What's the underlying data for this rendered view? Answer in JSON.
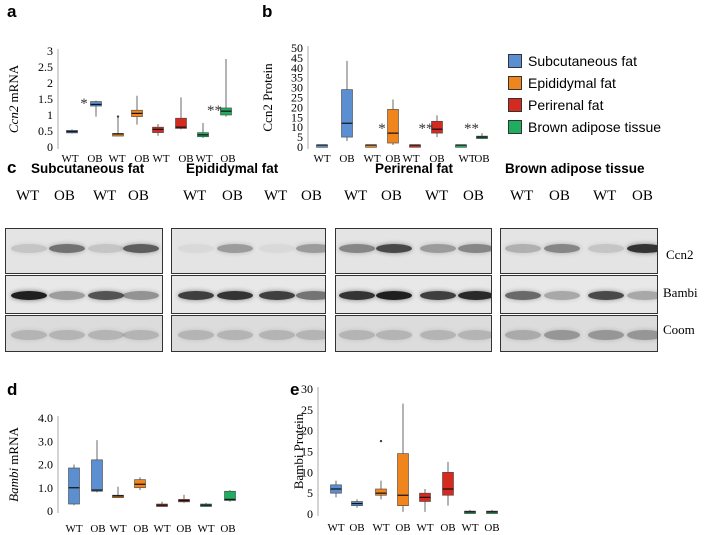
{
  "panels": {
    "a": "a",
    "b": "b",
    "c": "c",
    "d": "d",
    "e": "e"
  },
  "legend": [
    {
      "name": "Subcutaneous fat",
      "color": "#5b8fd1"
    },
    {
      "name": "Epididymal fat",
      "color": "#f0841d"
    },
    {
      "name": "Perirenal fat",
      "color": "#d52a20"
    },
    {
      "name": "Brown adipose tissue",
      "color": "#1fae5f"
    }
  ],
  "blots": {
    "titles": [
      "Subcutaneous fat",
      "Epididymal fat",
      "Perirenal fat",
      "Brown adipose tissue"
    ],
    "lanes": [
      "WT",
      "OB",
      "WT",
      "OB"
    ],
    "rows": [
      "Ccn2",
      "Bambi",
      "Coom"
    ]
  },
  "chart_data": [
    {
      "id": "a",
      "type": "box",
      "ylabel_gene": "Ccn2",
      "ylabel_suffix": " mRNA",
      "ylim": [
        0,
        3.0
      ],
      "yticks": [
        0,
        0.5,
        1.0,
        1.5,
        2.0,
        2.5,
        3.0
      ],
      "yticklabels": [
        "0",
        "0.5",
        "1",
        "1.5",
        "2",
        "2.5",
        "3"
      ],
      "categories": [
        "WT",
        "OB",
        "WT",
        "OB",
        "WT",
        "OB",
        "WT",
        "OB"
      ],
      "colors": [
        "#5b8fd1",
        "#5b8fd1",
        "#f0841d",
        "#f0841d",
        "#d52a20",
        "#d52a20",
        "#1fae5f",
        "#1fae5f"
      ],
      "boxes": [
        {
          "min": 0.42,
          "q1": 0.44,
          "median": 0.48,
          "q3": 0.52,
          "max": 0.55
        },
        {
          "min": 0.95,
          "q1": 1.28,
          "median": 1.33,
          "q3": 1.42,
          "max": 1.45
        },
        {
          "min": 0.38,
          "q1": 0.4,
          "median": 0.41,
          "q3": 0.42,
          "max": 0.95,
          "outliers": [
            0.95
          ]
        },
        {
          "min": 0.7,
          "q1": 0.95,
          "median": 1.05,
          "q3": 1.15,
          "max": 1.6
        },
        {
          "min": 0.35,
          "q1": 0.45,
          "median": 0.55,
          "q3": 0.62,
          "max": 0.72
        },
        {
          "min": 0.55,
          "q1": 0.58,
          "median": 0.62,
          "q3": 0.9,
          "max": 1.55
        },
        {
          "min": 0.28,
          "q1": 0.32,
          "median": 0.38,
          "q3": 0.45,
          "max": 0.75
        },
        {
          "min": 0.95,
          "q1": 1.0,
          "median": 1.12,
          "q3": 1.22,
          "max": 2.75
        }
      ],
      "annotations": [
        {
          "after": 0,
          "text": "*"
        },
        {
          "after": 6,
          "text": "**"
        }
      ]
    },
    {
      "id": "b",
      "type": "box",
      "ylabel": "Ccn2 Protein",
      "ylim": [
        0,
        50
      ],
      "yticks": [
        0,
        5,
        10,
        15,
        20,
        25,
        30,
        35,
        40,
        45,
        50
      ],
      "yticklabels": [
        "0",
        "5",
        "10",
        "15",
        "20",
        "25",
        "30",
        "35",
        "40",
        "45",
        "50"
      ],
      "categories": [
        "WT",
        "OB",
        "WT",
        "OB",
        "WT",
        "OB",
        "WT",
        "OB"
      ],
      "colors": [
        "#5b8fd1",
        "#5b8fd1",
        "#f0841d",
        "#f0841d",
        "#d52a20",
        "#d52a20",
        "#1fae5f",
        "#1fae5f"
      ],
      "boxes": [
        {
          "min": 0.8,
          "q1": 0.9,
          "median": 1.0,
          "q3": 1.1,
          "max": 1.2
        },
        {
          "min": 3.0,
          "q1": 5.0,
          "median": 12.0,
          "q3": 29.0,
          "max": 43.5
        },
        {
          "min": 0.8,
          "q1": 0.9,
          "median": 1.0,
          "q3": 1.1,
          "max": 1.2
        },
        {
          "min": 1.0,
          "q1": 2.0,
          "median": 7.0,
          "q3": 19.0,
          "max": 24.0
        },
        {
          "min": 0.8,
          "q1": 0.9,
          "median": 1.0,
          "q3": 1.1,
          "max": 1.2
        },
        {
          "min": 5.0,
          "q1": 7.0,
          "median": 9.0,
          "q3": 13.0,
          "max": 16.0
        },
        {
          "min": 0.8,
          "q1": 0.9,
          "median": 1.0,
          "q3": 1.1,
          "max": 1.2
        },
        {
          "min": 4.0,
          "q1": 4.5,
          "median": 5.0,
          "q3": 5.5,
          "max": 7.0
        }
      ],
      "annotations": [
        {
          "after": 2,
          "text": "*"
        },
        {
          "after": 4,
          "text": "**"
        },
        {
          "after": 6,
          "text": "**"
        }
      ]
    },
    {
      "id": "d",
      "type": "box",
      "ylabel_gene": "Bambi",
      "ylabel_suffix": " mRNA",
      "ylim": [
        0,
        4.0
      ],
      "yticks": [
        0,
        1.0,
        2.0,
        3.0,
        4.0
      ],
      "yticklabels": [
        "0",
        "1.0",
        "2.0",
        "3.0",
        "4.0"
      ],
      "categories": [
        "WT",
        "OB",
        "WT",
        "OB",
        "WT",
        "OB",
        "WT",
        "OB"
      ],
      "colors": [
        "#5b8fd1",
        "#5b8fd1",
        "#f0841d",
        "#f0841d",
        "#d52a20",
        "#d52a20",
        "#1fae5f",
        "#1fae5f"
      ],
      "boxes": [
        {
          "min": 0.25,
          "q1": 0.3,
          "median": 1.0,
          "q3": 1.85,
          "max": 2.0
        },
        {
          "min": 0.8,
          "q1": 0.85,
          "median": 0.9,
          "q3": 2.2,
          "max": 3.05
        },
        {
          "min": 0.62,
          "q1": 0.64,
          "median": 0.65,
          "q3": 0.68,
          "max": 1.05
        },
        {
          "min": 0.9,
          "q1": 1.0,
          "median": 1.15,
          "q3": 1.35,
          "max": 1.45
        },
        {
          "min": 0.2,
          "q1": 0.22,
          "median": 0.25,
          "q3": 0.3,
          "max": 0.4
        },
        {
          "min": 0.35,
          "q1": 0.4,
          "median": 0.45,
          "q3": 0.5,
          "max": 0.7
        },
        {
          "min": 0.2,
          "q1": 0.22,
          "median": 0.25,
          "q3": 0.3,
          "max": 0.35
        },
        {
          "min": 0.4,
          "q1": 0.45,
          "median": 0.5,
          "q3": 0.85,
          "max": 0.9
        }
      ]
    },
    {
      "id": "e",
      "type": "box",
      "ylabel": "Bambi Protein",
      "ylim": [
        0,
        30
      ],
      "yticks": [
        0,
        5,
        10,
        15,
        20,
        25,
        30
      ],
      "yticklabels": [
        "0",
        "5",
        "10",
        "15",
        "20",
        "25",
        "30"
      ],
      "categories": [
        "WT",
        "OB",
        "WT",
        "OB",
        "WT",
        "OB",
        "WT",
        "OB"
      ],
      "colors": [
        "#5b8fd1",
        "#5b8fd1",
        "#f0841d",
        "#f0841d",
        "#d52a20",
        "#d52a20",
        "#1fae5f",
        "#1fae5f"
      ],
      "boxes": [
        {
          "min": 4.0,
          "q1": 5.0,
          "median": 6.0,
          "q3": 7.0,
          "max": 8.0
        },
        {
          "min": 1.5,
          "q1": 2.0,
          "median": 2.5,
          "q3": 3.0,
          "max": 3.5
        },
        {
          "min": 3.5,
          "q1": 4.5,
          "median": 5.0,
          "q3": 6.0,
          "max": 8.0,
          "outliers": [
            17.5
          ]
        },
        {
          "min": 0.5,
          "q1": 2.0,
          "median": 4.5,
          "q3": 14.5,
          "max": 26.5
        },
        {
          "min": 0.5,
          "q1": 3.0,
          "median": 4.0,
          "q3": 5.0,
          "max": 6.0
        },
        {
          "min": 2.0,
          "q1": 4.5,
          "median": 6.0,
          "q3": 10.0,
          "max": 12.5
        },
        {
          "min": 0.2,
          "q1": 0.3,
          "median": 0.5,
          "q3": 0.7,
          "max": 1.0
        },
        {
          "min": 0.2,
          "q1": 0.3,
          "median": 0.5,
          "q3": 0.7,
          "max": 1.0
        }
      ]
    }
  ]
}
